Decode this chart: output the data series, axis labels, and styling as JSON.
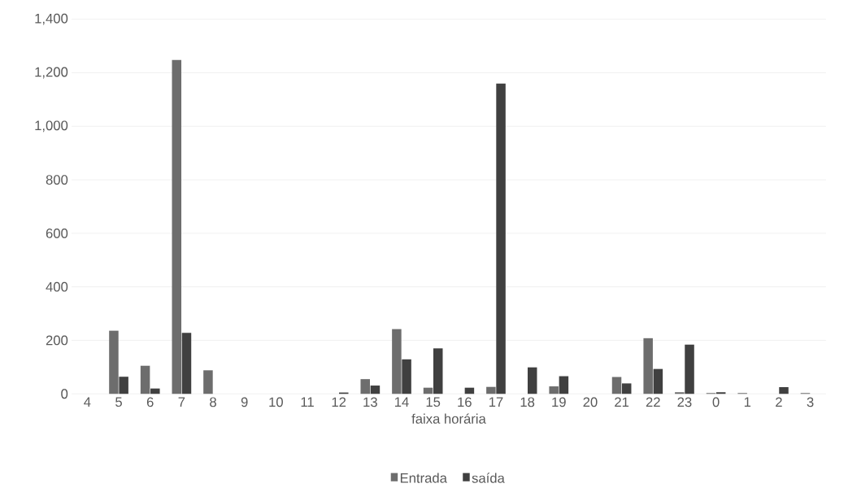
{
  "chart_data": {
    "type": "bar",
    "xlabel": "faixa horária",
    "categories": [
      "4",
      "5",
      "6",
      "7",
      "8",
      "9",
      "10",
      "11",
      "12",
      "13",
      "14",
      "15",
      "16",
      "17",
      "18",
      "19",
      "20",
      "21",
      "22",
      "23",
      "0",
      "1",
      "2",
      "3"
    ],
    "series": [
      {
        "name": "Entrada",
        "color": "#6d6d6d",
        "values": [
          0,
          236,
          105,
          1248,
          88,
          0,
          0,
          0,
          0,
          55,
          242,
          23,
          0,
          26,
          0,
          28,
          0,
          63,
          208,
          6,
          3,
          3,
          0,
          3
        ]
      },
      {
        "name": "saída",
        "color": "#404040",
        "values": [
          0,
          64,
          20,
          228,
          0,
          0,
          0,
          0,
          5,
          31,
          129,
          170,
          23,
          1160,
          99,
          66,
          0,
          39,
          93,
          184,
          6,
          0,
          25,
          0
        ]
      }
    ],
    "ylim": [
      0,
      1400
    ],
    "yticks": [
      0,
      {
        "value": 200,
        "label": "200"
      },
      {
        "value": 400,
        "label": "400"
      },
      {
        "value": 600,
        "label": "600"
      },
      {
        "value": 800,
        "label": "800"
      },
      {
        "value": 1000,
        "label": "1,000"
      },
      {
        "value": 1200,
        "label": "1,200"
      },
      {
        "value": 1400,
        "label": "1,400"
      }
    ],
    "grid": "y",
    "legend": "bottom"
  }
}
